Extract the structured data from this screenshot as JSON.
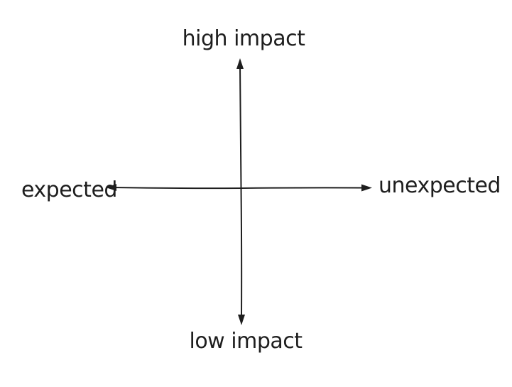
{
  "diagram": {
    "axes": {
      "top_label": "high impact",
      "bottom_label": "low impact",
      "left_label": "expected",
      "right_label": "unexpected"
    },
    "stroke_color": "#1e1e1e",
    "background_color": "#ffffff"
  }
}
